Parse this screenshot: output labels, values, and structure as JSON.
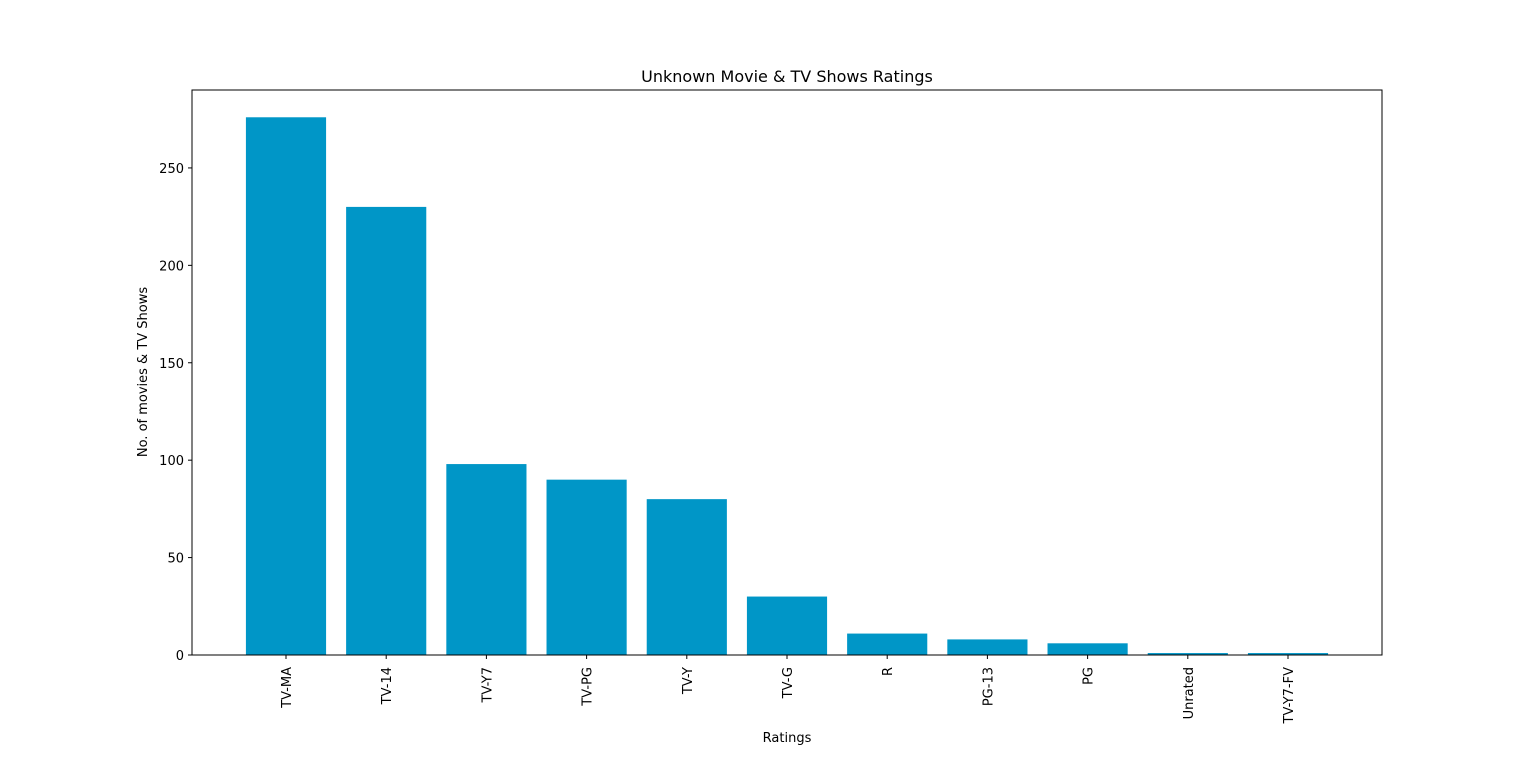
{
  "chart_data": {
    "type": "bar",
    "title": "Unknown Movie & TV Shows Ratings",
    "xlabel": "Ratings",
    "ylabel": "No. of movies & TV Shows",
    "categories": [
      "TV-MA",
      "TV-14",
      "TV-Y7",
      "TV-PG",
      "TV-Y",
      "TV-G",
      "R",
      "PG-13",
      "PG",
      "Unrated",
      "TV-Y7-FV"
    ],
    "values": [
      276,
      230,
      98,
      90,
      80,
      30,
      11,
      8,
      6,
      1,
      1
    ],
    "ylim": [
      0,
      290
    ],
    "yticks": [
      "0",
      "50",
      "100",
      "150",
      "200",
      "250"
    ],
    "bar_color": "#0096c7",
    "grid": false,
    "legend": "none"
  }
}
